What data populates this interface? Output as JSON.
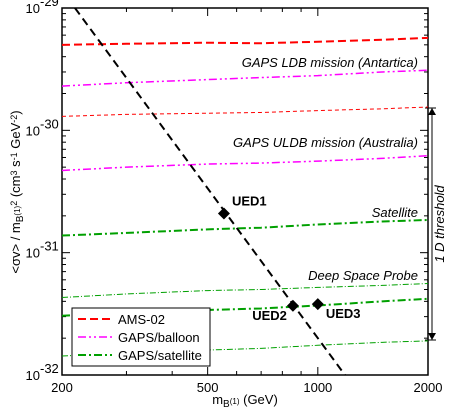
{
  "chart_data": {
    "type": "line",
    "log_x": true,
    "log_y": true,
    "xlim": [
      200,
      2000
    ],
    "ylim": [
      1e-32,
      1e-29
    ],
    "xticks": [
      200,
      500,
      1000,
      2000
    ],
    "xminor": [
      300,
      400,
      600,
      700,
      800,
      900
    ],
    "yticks": [
      {
        "value": 1e-32,
        "label": "10",
        "exponent": "-32"
      },
      {
        "value": 1e-31,
        "label": "10",
        "exponent": "-31"
      },
      {
        "value": 1e-30,
        "label": "10",
        "exponent": "-30"
      },
      {
        "value": 1e-29,
        "label": "10",
        "exponent": "-29"
      }
    ],
    "yminor": [
      2e-32,
      3e-32,
      4e-32,
      5e-32,
      6e-32,
      7e-32,
      8e-32,
      9e-32,
      2e-31,
      3e-31,
      4e-31,
      5e-31,
      6e-31,
      7e-31,
      8e-31,
      9e-31,
      2e-30,
      3e-30,
      4e-30,
      5e-30,
      6e-30,
      7e-30,
      8e-30,
      9e-30
    ],
    "x_label": [
      {
        "text": "m"
      },
      {
        "text": "B",
        "shift": "sub"
      },
      {
        "text": "(1)",
        "shift": "subsup"
      },
      {
        "text": " (GeV)"
      }
    ],
    "y_label": [
      {
        "text": "<σv> / m"
      },
      {
        "text": "B",
        "shift": "sub"
      },
      {
        "text": "(1)",
        "shift": "subsup"
      },
      {
        "text": "2",
        "shift": "sup"
      },
      {
        "text": " (cm"
      },
      {
        "text": "3",
        "shift": "sup"
      },
      {
        "text": " s"
      },
      {
        "text": "-1",
        "shift": "sup"
      },
      {
        "text": " GeV"
      },
      {
        "text": "-2",
        "shift": "sup"
      },
      {
        "text": ")"
      }
    ],
    "x": [
      200,
      300,
      500,
      700,
      1000,
      1500,
      2000
    ],
    "series": [
      {
        "name": "AMS-02",
        "color": "#ff0000",
        "dash": "8,4",
        "width": 2,
        "values": [
          5e-30,
          5.1e-30,
          5.2e-30,
          5.15e-30,
          5.3e-30,
          5.5e-30,
          5.7e-30
        ]
      },
      {
        "color": "#ff0000",
        "dash": "4,3",
        "width": 1,
        "values": [
          1.3e-30,
          1.35e-30,
          1.38e-30,
          1.4e-30,
          1.45e-30,
          1.5e-30,
          1.55e-30
        ]
      },
      {
        "name": "GAPS/balloon",
        "color": "#ff00ff",
        "dash": "8,3,2,3,2,3",
        "width": 1.5,
        "values": [
          2.3e-30,
          2.45e-30,
          2.6e-30,
          2.7e-30,
          2.8e-30,
          3e-30,
          3.1e-30
        ]
      },
      {
        "color": "#ff00ff",
        "dash": "8,3,2,3,2,3",
        "width": 1.5,
        "values": [
          4.7e-31,
          5e-31,
          5.3e-31,
          5.4e-31,
          5.6e-31,
          5.9e-31,
          6.2e-31
        ]
      },
      {
        "name": "GAPS/satellite",
        "color": "#00a000",
        "dash": "8,3,2,3",
        "width": 2,
        "values": [
          1.38e-31,
          1.45e-31,
          1.55e-31,
          1.6e-31,
          1.7e-31,
          1.8e-31,
          1.85e-31
        ]
      },
      {
        "color": "#00a000",
        "dash": "6,2,1,2",
        "width": 1,
        "values": [
          4.3e-32,
          4.6e-32,
          4.9e-32,
          5e-32,
          5.2e-32,
          5.4e-32,
          5.6e-32
        ]
      },
      {
        "color": "#00a000",
        "dash": "8,3,2,3",
        "width": 2,
        "values": [
          3.05e-32,
          3.2e-32,
          3.4e-32,
          3.5e-32,
          3.7e-32,
          4e-32,
          4.2e-32
        ]
      },
      {
        "color": "#00a000",
        "dash": "6,2,1,2",
        "width": 1,
        "values": [
          1.43e-32,
          1.5e-32,
          1.6e-32,
          1.65e-32,
          1.75e-32,
          1.85e-32,
          1.9e-32
        ]
      }
    ],
    "model_line": {
      "color": "#000000",
      "dash": "8,5",
      "width": 2,
      "x": [
        217,
        1186
      ],
      "values": [
        1e-29,
        1e-32
      ]
    },
    "points": [
      {
        "label": "UED1",
        "x": 554,
        "y": 2.09e-31
      },
      {
        "label": "UED2",
        "x": 855,
        "y": 3.68e-32
      },
      {
        "label": "UED3",
        "x": 1000,
        "y": 3.8e-32
      }
    ],
    "annotations": [
      "GAPS LDB mission (Antartica)",
      "GAPS ULDB mission (Australia)",
      "Satellite",
      "Deep Space Probe"
    ],
    "threshold_label": "1 D threshold",
    "legend": "lower left"
  }
}
